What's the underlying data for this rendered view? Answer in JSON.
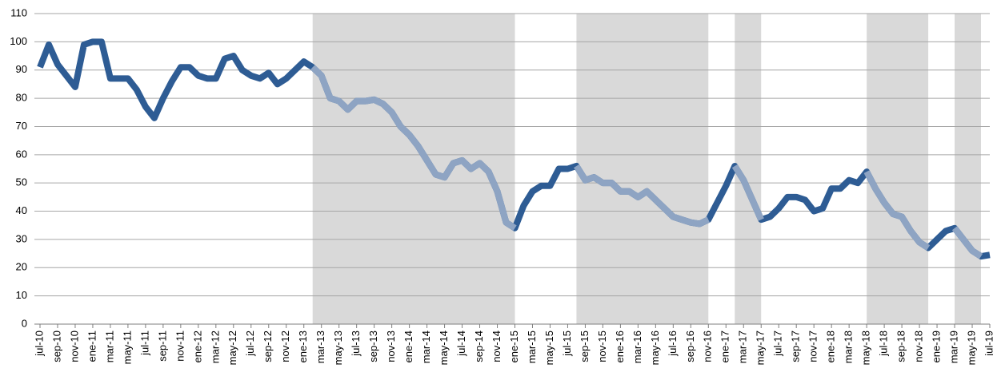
{
  "chart_data": {
    "type": "line",
    "categories": [
      "jul-10",
      null,
      "sep-10",
      null,
      "nov-10",
      null,
      "ene-11",
      null,
      "mar-11",
      null,
      "may-11",
      null,
      "jul-11",
      null,
      "sep-11",
      null,
      "nov-11",
      null,
      "ene-12",
      null,
      "mar-12",
      null,
      "may-12",
      null,
      "jul-12",
      null,
      "sep-12",
      null,
      "nov-12",
      null,
      "ene-13",
      null,
      "mar-13",
      null,
      "may-13",
      null,
      "jul-13",
      null,
      "sep-13",
      null,
      "nov-13",
      null,
      "ene-14",
      null,
      "mar-14",
      null,
      "may-14",
      null,
      "jul-14",
      null,
      "sep-14",
      null,
      "nov-14",
      null,
      "ene-15",
      null,
      "mar-15",
      null,
      "may-15",
      null,
      "jul-15",
      null,
      "sep-15",
      null,
      "nov-15",
      null,
      "ene-16",
      null,
      "mar-16",
      null,
      "may-16",
      null,
      "jul-16",
      null,
      "sep-16",
      null,
      "nov-16",
      null,
      "ene-17",
      null,
      "mar-17",
      null,
      "may-17",
      null,
      "jul-17",
      null,
      "sep-17",
      null,
      "nov-17",
      null,
      "ene-18",
      null,
      "mar-18",
      null,
      "may-18",
      null,
      "jul-18",
      null,
      "sep-18",
      null,
      "nov-18",
      null,
      "ene-19",
      null,
      "mar-19",
      null,
      "may-19",
      null,
      "jul-19"
    ],
    "values": [
      91,
      99,
      92,
      88,
      84,
      99,
      100,
      100,
      87,
      87,
      87,
      83,
      77,
      73,
      80,
      86,
      91,
      91,
      88,
      87,
      87,
      94,
      95,
      90,
      88,
      87,
      89,
      85,
      87,
      90,
      93,
      91,
      88,
      80,
      79,
      76,
      79,
      79,
      79.5,
      78,
      75,
      70,
      67,
      63,
      58,
      53,
      52,
      57,
      58,
      55,
      57,
      54,
      47,
      36,
      34,
      42,
      47,
      49,
      49,
      55,
      55,
      56,
      51,
      52,
      50,
      50,
      47,
      47,
      45,
      47,
      44,
      41,
      38,
      37,
      36,
      35.5,
      37,
      43,
      49,
      56,
      51,
      44,
      37,
      38,
      41,
      45,
      45,
      44,
      40,
      41,
      48,
      48,
      51,
      50,
      54,
      48,
      43,
      39,
      38,
      33,
      29,
      27,
      30,
      33,
      34,
      30,
      26,
      24,
      24.5
    ],
    "color": "#2e5c94",
    "highlight_color": "#8ea4c3",
    "band_color": "#d9d9d9",
    "highlight_ranges": [
      [
        31,
        54
      ],
      [
        61,
        76
      ],
      [
        79,
        82
      ],
      [
        94,
        101
      ],
      [
        104,
        107
      ]
    ],
    "ylim": [
      0,
      110
    ],
    "yticks": [
      0,
      10,
      20,
      30,
      40,
      50,
      60,
      70,
      80,
      90,
      100,
      110
    ],
    "grid": true
  }
}
